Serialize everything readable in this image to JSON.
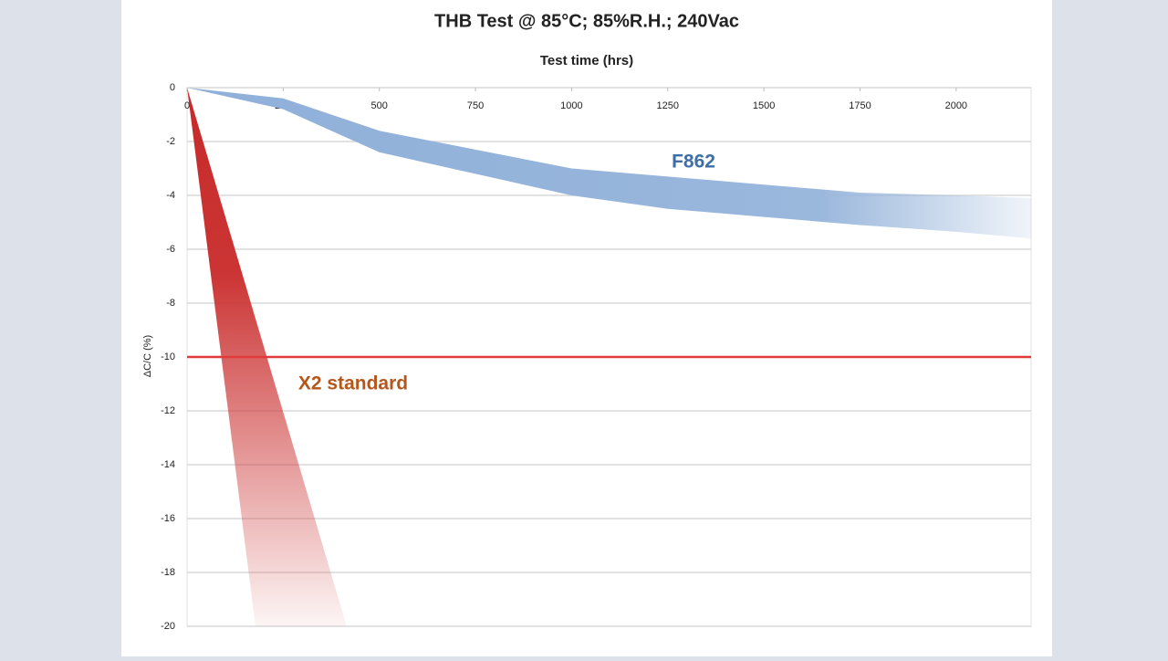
{
  "chart_data": {
    "type": "band",
    "title": "THB Test @ 85°C;  85%R.H.;  240Vac",
    "x_label": "Test time (hrs)",
    "y_label": "ΔC/C (%)",
    "xlim": [
      0,
      2195
    ],
    "xticks": [
      0,
      250,
      500,
      750,
      1000,
      1250,
      1500,
      1750,
      2000
    ],
    "ylim": [
      -20,
      0
    ],
    "yticks": [
      0,
      -2,
      -4,
      -6,
      -8,
      -10,
      -12,
      -14,
      -16,
      -18,
      -20
    ],
    "grid": true,
    "reference_line": {
      "value": -10,
      "color": "#e03a3a"
    },
    "series": [
      {
        "name": "F862",
        "color": "#8fb0d9",
        "label_color": "#3d6ea8",
        "upper": {
          "x": [
            0,
            250,
            500,
            750,
            1000,
            1250,
            1500,
            1750,
            2000,
            2195
          ],
          "values": [
            0,
            -0.4,
            -1.6,
            -2.3,
            -3.0,
            -3.3,
            -3.6,
            -3.9,
            -4.0,
            -4.1
          ]
        },
        "lower": {
          "x": [
            0,
            250,
            500,
            750,
            1000,
            1250,
            1500,
            1750,
            2000,
            2195
          ],
          "values": [
            0,
            -0.8,
            -2.4,
            -3.2,
            -4.0,
            -4.5,
            -4.8,
            -5.1,
            -5.35,
            -5.6
          ]
        }
      },
      {
        "name": "X2 standard",
        "color": "#c62a2a",
        "label_color": "#b5561d",
        "upper": {
          "x": [
            0,
            415
          ],
          "values": [
            0,
            -20
          ]
        },
        "lower": {
          "x": [
            0,
            178
          ],
          "values": [
            0,
            -20
          ]
        }
      }
    ]
  }
}
